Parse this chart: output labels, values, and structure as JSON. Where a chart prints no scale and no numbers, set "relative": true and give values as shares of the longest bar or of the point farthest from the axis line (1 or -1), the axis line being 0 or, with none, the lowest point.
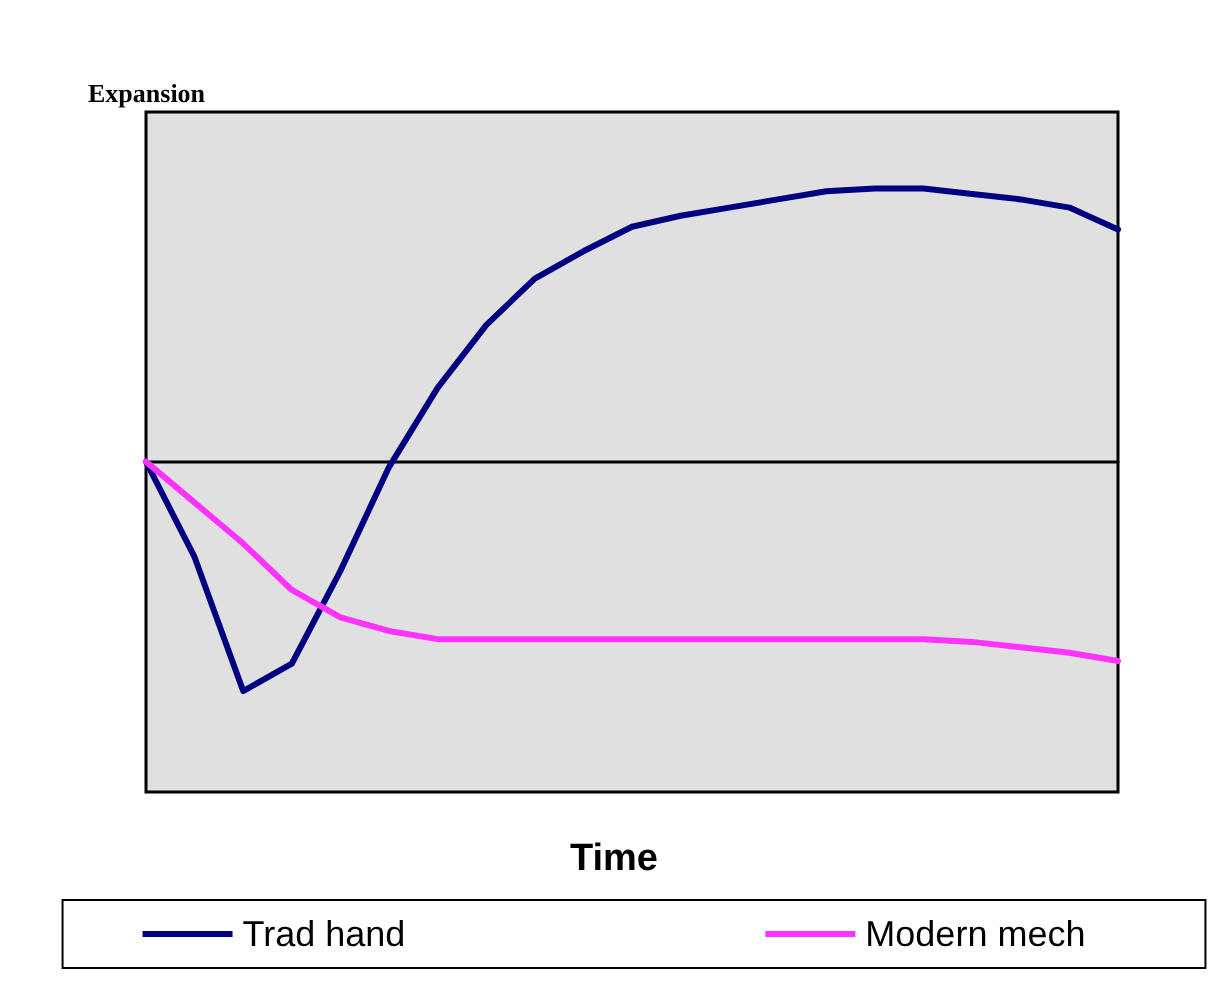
{
  "chart_data": {
    "type": "line",
    "relative": true,
    "ylabel": "Expansion",
    "xlabel": "Time",
    "legend": "bottom",
    "grid": false,
    "marker": "none",
    "line_style": "solid",
    "categories": [
      null,
      null,
      null,
      null,
      null,
      null,
      null,
      null,
      null,
      null,
      null,
      null,
      null,
      null,
      null,
      null,
      null,
      null,
      null,
      null,
      null
    ],
    "series": [
      {
        "name": "Trad hand",
        "color": "#000080",
        "values": [
          0,
          -0.35,
          -0.84,
          -0.74,
          -0.4,
          -0.02,
          0.27,
          0.5,
          0.67,
          0.77,
          0.86,
          0.9,
          0.93,
          0.96,
          0.99,
          1,
          1,
          0.98,
          0.96,
          0.93,
          0.85
        ]
      },
      {
        "name": "Modern mech",
        "color": "#ff33ff",
        "values": [
          0,
          -0.15,
          -0.3,
          -0.47,
          -0.57,
          -0.62,
          -0.65,
          -0.65,
          -0.65,
          -0.65,
          -0.65,
          -0.65,
          -0.65,
          -0.65,
          -0.65,
          -0.65,
          -0.65,
          -0.66,
          -0.68,
          -0.7,
          -0.73
        ]
      }
    ]
  }
}
